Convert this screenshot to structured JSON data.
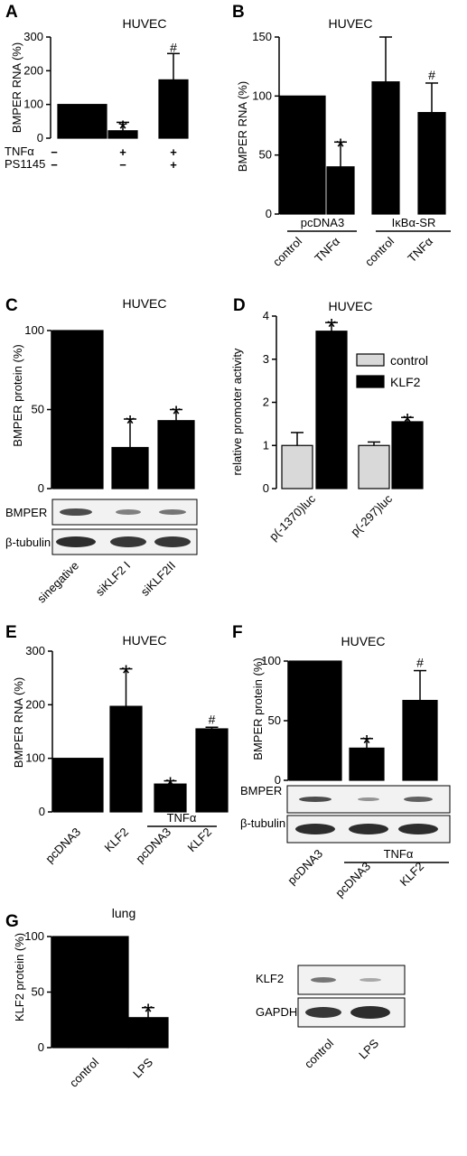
{
  "chart_data": [
    {
      "id": "A",
      "type": "bar",
      "title": "HUVEC",
      "ylabel": "BMPER RNA (%)",
      "ylim": [
        0,
        300
      ],
      "yticks": [
        0,
        100,
        200,
        300
      ],
      "values": [
        100,
        22,
        173
      ],
      "errors": [
        0,
        25,
        78
      ],
      "markers": [
        "",
        "*",
        "#"
      ],
      "conditions": [
        {
          "name": "TNFα",
          "signs": [
            "−",
            "+",
            "+"
          ]
        },
        {
          "name": "PS1145",
          "signs": [
            "−",
            "−",
            "+"
          ]
        }
      ]
    },
    {
      "id": "B",
      "type": "bar",
      "title": "HUVEC",
      "ylabel": "BMPER RNA (%)",
      "ylim": [
        0,
        150
      ],
      "yticks": [
        0,
        50,
        100,
        150
      ],
      "values": [
        100,
        40,
        112,
        86
      ],
      "errors": [
        0,
        21,
        38,
        25
      ],
      "markers": [
        "",
        "*",
        "",
        "#"
      ],
      "groups": [
        "pcDNA3",
        "IκBα-SR"
      ],
      "categories": [
        "control",
        "TNFα",
        "control",
        "TNFα"
      ]
    },
    {
      "id": "C",
      "type": "bar",
      "title": "HUVEC",
      "ylabel": "BMPER protein (%)",
      "ylim": [
        0,
        100
      ],
      "yticks": [
        0,
        50,
        100
      ],
      "values": [
        100,
        26,
        43
      ],
      "errors": [
        0,
        18,
        7
      ],
      "markers": [
        "",
        "*",
        "*"
      ],
      "categories": [
        "sinegative",
        "siKLF2 I",
        "siKLF2II"
      ],
      "blots": [
        "BMPER",
        "β-tubulin"
      ]
    },
    {
      "id": "D",
      "type": "bar",
      "title": "HUVEC",
      "ylabel": "relative promoter activity",
      "ylim": [
        0,
        4
      ],
      "yticks": [
        0,
        1,
        2,
        3,
        4
      ],
      "categories": [
        "p(-1370)luc",
        "p(-297)luc"
      ],
      "series": [
        {
          "name": "control",
          "values": [
            1.0,
            1.0
          ],
          "errors": [
            0.3,
            0.08
          ],
          "markers": [
            "",
            ""
          ],
          "color": "#d9d9d9"
        },
        {
          "name": "KLF2",
          "values": [
            3.65,
            1.55
          ],
          "errors": [
            0.2,
            0.1
          ],
          "markers": [
            "*",
            "*"
          ],
          "color": "#000000"
        }
      ]
    },
    {
      "id": "E",
      "type": "bar",
      "title": "HUVEC",
      "ylabel": "BMPER RNA (%)",
      "ylim": [
        0,
        300
      ],
      "yticks": [
        0,
        100,
        200,
        300
      ],
      "values": [
        100,
        197,
        52,
        155
      ],
      "errors": [
        0,
        70,
        6,
        3
      ],
      "markers": [
        "",
        "*",
        "*",
        "#"
      ],
      "categories": [
        "pcDNA3",
        "KLF2",
        "pcDNA3",
        "KLF2"
      ],
      "group_label": "TNFα"
    },
    {
      "id": "F",
      "type": "bar",
      "title": "HUVEC",
      "ylabel": "BMPER protein (%)",
      "ylim": [
        0,
        100
      ],
      "yticks": [
        0,
        50,
        100
      ],
      "values": [
        100,
        27,
        67
      ],
      "errors": [
        0,
        8,
        25
      ],
      "markers": [
        "",
        "*",
        "#"
      ],
      "categories": [
        "pcDNA3",
        "pcDNA3",
        "KLF2"
      ],
      "group_label": "TNFα",
      "blots": [
        "BMPER",
        "β-tubulin"
      ]
    },
    {
      "id": "G",
      "type": "bar",
      "title": "lung",
      "ylabel": "KLF2 protein (%)",
      "ylim": [
        0,
        100
      ],
      "yticks": [
        0,
        50,
        100
      ],
      "values": [
        100,
        27
      ],
      "errors": [
        0,
        9
      ],
      "markers": [
        "",
        "*"
      ],
      "categories": [
        "control",
        "LPS"
      ],
      "blots": [
        "KLF2",
        "GAPDH"
      ],
      "blot_categories": [
        "control",
        "LPS"
      ]
    }
  ]
}
